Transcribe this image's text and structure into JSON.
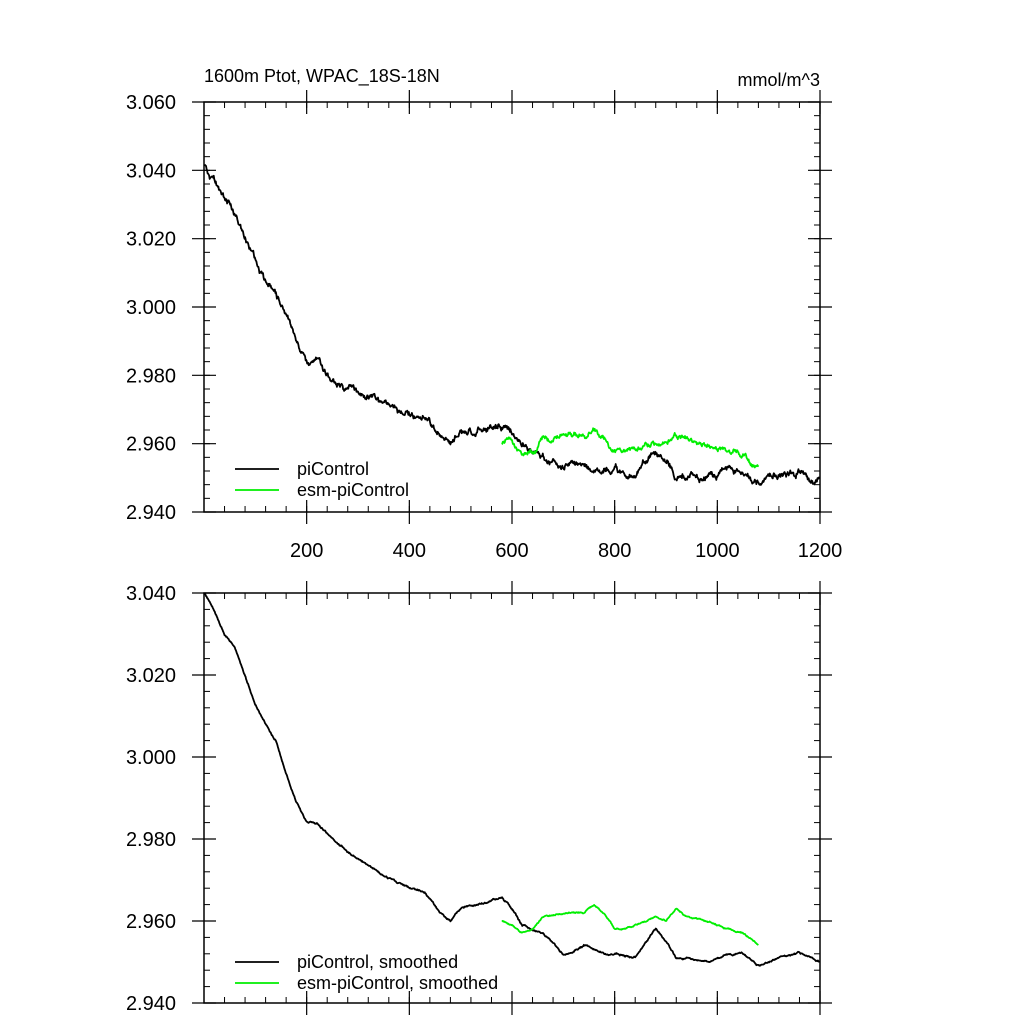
{
  "chart_data": [
    {
      "type": "line",
      "title": "1600m Ptot, WPAC_18S-18N",
      "units": "mmol/m^3",
      "xlim": [
        0,
        1200
      ],
      "ylim": [
        2.94,
        3.06
      ],
      "x_ticks": [
        200,
        400,
        600,
        800,
        1000,
        1200
      ],
      "x_tick_labels": [
        "200",
        "400",
        "600",
        "800",
        "1000",
        "1200"
      ],
      "y_ticks": [
        2.94,
        2.96,
        2.98,
        3.0,
        3.02,
        3.04,
        3.06
      ],
      "y_tick_labels": [
        "2.940",
        "2.960",
        "2.980",
        "3.000",
        "3.020",
        "3.040",
        "3.060"
      ],
      "legend": "bottom-left",
      "series": [
        {
          "name": "piControl",
          "color": "#000000",
          "noise": 0.0011,
          "x": [
            1,
            20,
            40,
            60,
            80,
            100,
            120,
            140,
            160,
            180,
            200,
            220,
            250,
            300,
            350,
            400,
            430,
            460,
            480,
            500,
            540,
            580,
            600,
            620,
            640,
            660,
            700,
            740,
            780,
            800,
            840,
            880,
            900,
            920,
            940,
            980,
            1020,
            1050,
            1080,
            1120,
            1160,
            1180,
            1200
          ],
          "y": [
            3.041,
            3.037,
            3.031,
            3.028,
            3.021,
            3.014,
            3.008,
            3.005,
            2.997,
            2.99,
            2.983,
            2.984,
            2.979,
            2.975,
            2.972,
            2.968,
            2.967,
            2.962,
            2.96,
            2.963,
            2.965,
            2.966,
            2.963,
            2.959,
            2.958,
            2.957,
            2.953,
            2.954,
            2.953,
            2.952,
            2.951,
            2.958,
            2.955,
            2.95,
            2.951,
            2.95,
            2.952,
            2.951,
            2.949,
            2.951,
            2.952,
            2.95,
            2.951
          ]
        },
        {
          "name": "esm-piControl",
          "color": "#00ee00",
          "noise": 0.0009,
          "x": [
            580,
            600,
            620,
            640,
            660,
            700,
            740,
            760,
            780,
            800,
            820,
            840,
            880,
            900,
            920,
            940,
            980,
            1020,
            1050,
            1080
          ],
          "y": [
            2.96,
            2.96,
            2.957,
            2.958,
            2.962,
            2.962,
            2.962,
            2.964,
            2.962,
            2.958,
            2.958,
            2.959,
            2.96,
            2.96,
            2.962,
            2.961,
            2.96,
            2.958,
            2.957,
            2.953
          ]
        }
      ]
    },
    {
      "type": "line",
      "title": "",
      "xlim": [
        0,
        1200
      ],
      "ylim": [
        2.94,
        3.04
      ],
      "x_ticks": [
        200,
        400,
        600,
        800,
        1000,
        1200
      ],
      "x_tick_labels": [],
      "y_ticks": [
        2.94,
        2.96,
        2.98,
        3.0,
        3.02,
        3.04
      ],
      "y_tick_labels": [
        "2.940",
        "2.960",
        "2.980",
        "3.000",
        "3.020",
        "3.040"
      ],
      "legend": "bottom-left",
      "series": [
        {
          "name": "piControl, smoothed",
          "color": "#000000",
          "noise": 0.00025,
          "x": [
            1,
            20,
            40,
            60,
            80,
            100,
            120,
            140,
            160,
            180,
            200,
            220,
            250,
            300,
            350,
            400,
            430,
            460,
            480,
            500,
            540,
            580,
            600,
            620,
            640,
            660,
            700,
            740,
            780,
            800,
            840,
            880,
            900,
            920,
            940,
            980,
            1020,
            1050,
            1080,
            1120,
            1160,
            1180,
            1200
          ],
          "y": [
            3.04,
            3.036,
            3.03,
            3.027,
            3.02,
            3.013,
            3.008,
            3.004,
            2.996,
            2.989,
            2.984,
            2.984,
            2.98,
            2.975,
            2.971,
            2.968,
            2.967,
            2.962,
            2.96,
            2.963,
            2.964,
            2.966,
            2.963,
            2.959,
            2.958,
            2.957,
            2.952,
            2.954,
            2.952,
            2.952,
            2.951,
            2.958,
            2.955,
            2.951,
            2.951,
            2.95,
            2.952,
            2.952,
            2.949,
            2.951,
            2.952,
            2.951,
            2.95
          ]
        },
        {
          "name": "esm-piControl, smoothed",
          "color": "#00ee00",
          "noise": 0.0002,
          "x": [
            580,
            600,
            620,
            640,
            660,
            700,
            740,
            760,
            780,
            800,
            820,
            840,
            880,
            900,
            920,
            940,
            980,
            1020,
            1050,
            1080
          ],
          "y": [
            2.96,
            2.959,
            2.957,
            2.958,
            2.961,
            2.962,
            2.962,
            2.964,
            2.962,
            2.958,
            2.958,
            2.959,
            2.961,
            2.96,
            2.963,
            2.961,
            2.96,
            2.958,
            2.957,
            2.954
          ]
        }
      ]
    }
  ]
}
